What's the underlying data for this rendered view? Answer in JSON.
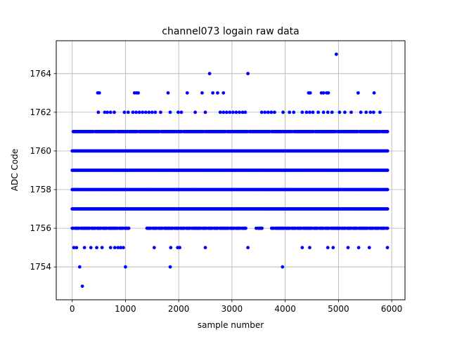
{
  "chart_data": {
    "type": "scatter",
    "title": "channel073 logain raw data",
    "xlabel": "sample number",
    "ylabel": "ADC Code",
    "xlim": [
      -300,
      6250
    ],
    "ylim": [
      1752.3,
      1765.7
    ],
    "xticks": [
      0,
      1000,
      2000,
      3000,
      4000,
      5000,
      6000
    ],
    "yticks": [
      1754,
      1756,
      1758,
      1760,
      1762,
      1764
    ],
    "grid": true,
    "marker_color": "#0000ff",
    "series": [
      {
        "values_note": "",
        "dense_levels": [
          1757,
          1758,
          1759,
          1760
        ],
        "dense_range": [
          0,
          5930
        ],
        "level_1761_dense": true,
        "points": [
          [
            190,
            1753
          ],
          [
            140,
            1754
          ],
          [
            1000,
            1754
          ],
          [
            1840,
            1754
          ],
          [
            3950,
            1754
          ],
          [
            30,
            1755
          ],
          [
            80,
            1755
          ],
          [
            230,
            1755
          ],
          [
            350,
            1755
          ],
          [
            460,
            1755
          ],
          [
            560,
            1755
          ],
          [
            720,
            1755
          ],
          [
            800,
            1755
          ],
          [
            860,
            1755
          ],
          [
            910,
            1755
          ],
          [
            960,
            1755
          ],
          [
            1540,
            1755
          ],
          [
            1850,
            1755
          ],
          [
            1980,
            1755
          ],
          [
            2020,
            1755
          ],
          [
            2500,
            1755
          ],
          [
            3300,
            1755
          ],
          [
            4320,
            1755
          ],
          [
            4460,
            1755
          ],
          [
            4800,
            1755
          ],
          [
            4900,
            1755
          ],
          [
            5180,
            1755
          ],
          [
            5380,
            1755
          ],
          [
            5580,
            1755
          ],
          [
            5920,
            1755
          ],
          [
            490,
            1762
          ],
          [
            610,
            1762
          ],
          [
            660,
            1762
          ],
          [
            720,
            1762
          ],
          [
            790,
            1762
          ],
          [
            980,
            1762
          ],
          [
            1050,
            1762
          ],
          [
            1140,
            1762
          ],
          [
            1200,
            1762
          ],
          [
            1260,
            1762
          ],
          [
            1320,
            1762
          ],
          [
            1380,
            1762
          ],
          [
            1440,
            1762
          ],
          [
            1500,
            1762
          ],
          [
            1560,
            1762
          ],
          [
            1660,
            1762
          ],
          [
            1840,
            1762
          ],
          [
            1990,
            1762
          ],
          [
            2050,
            1762
          ],
          [
            2310,
            1762
          ],
          [
            2500,
            1762
          ],
          [
            2780,
            1762
          ],
          [
            2840,
            1762
          ],
          [
            2900,
            1762
          ],
          [
            2960,
            1762
          ],
          [
            3020,
            1762
          ],
          [
            3080,
            1762
          ],
          [
            3140,
            1762
          ],
          [
            3200,
            1762
          ],
          [
            3250,
            1762
          ],
          [
            3560,
            1762
          ],
          [
            3620,
            1762
          ],
          [
            3680,
            1762
          ],
          [
            3740,
            1762
          ],
          [
            3800,
            1762
          ],
          [
            3960,
            1762
          ],
          [
            4080,
            1762
          ],
          [
            4160,
            1762
          ],
          [
            4320,
            1762
          ],
          [
            4400,
            1762
          ],
          [
            4460,
            1762
          ],
          [
            4520,
            1762
          ],
          [
            4620,
            1762
          ],
          [
            4720,
            1762
          ],
          [
            4800,
            1762
          ],
          [
            4880,
            1762
          ],
          [
            5020,
            1762
          ],
          [
            5120,
            1762
          ],
          [
            5240,
            1762
          ],
          [
            5420,
            1762
          ],
          [
            5520,
            1762
          ],
          [
            5600,
            1762
          ],
          [
            5660,
            1762
          ],
          [
            5780,
            1762
          ],
          [
            480,
            1763
          ],
          [
            510,
            1763
          ],
          [
            1170,
            1763
          ],
          [
            1210,
            1763
          ],
          [
            1240,
            1763
          ],
          [
            1800,
            1763
          ],
          [
            2160,
            1763
          ],
          [
            2440,
            1763
          ],
          [
            2640,
            1763
          ],
          [
            2730,
            1763
          ],
          [
            2840,
            1763
          ],
          [
            4440,
            1763
          ],
          [
            4470,
            1763
          ],
          [
            4680,
            1763
          ],
          [
            4720,
            1763
          ],
          [
            4780,
            1763
          ],
          [
            4810,
            1763
          ],
          [
            5370,
            1763
          ],
          [
            5670,
            1763
          ],
          [
            2580,
            1764
          ],
          [
            3300,
            1764
          ],
          [
            4960,
            1765
          ]
        ]
      }
    ]
  }
}
